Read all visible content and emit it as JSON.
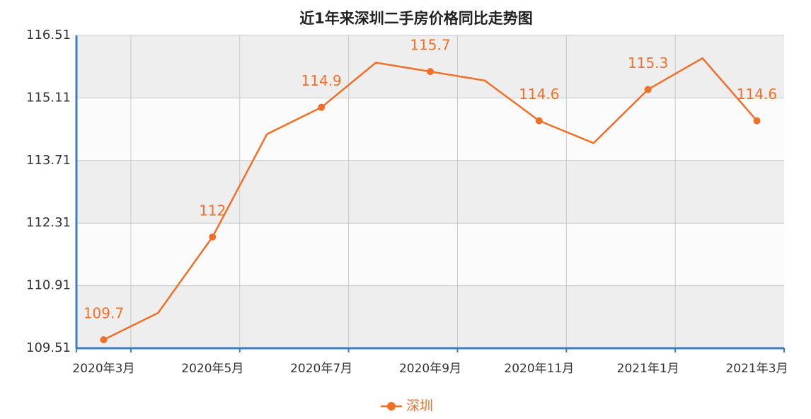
{
  "chart_data": {
    "type": "line",
    "title": "近1年来深圳二手房价格同比走势图",
    "categories": [
      "2020年3月",
      null,
      "2020年5月",
      null,
      "2020年7月",
      null,
      "2020年9月",
      null,
      "2020年11月",
      null,
      "2021年1月",
      null,
      "2021年3月"
    ],
    "series": [
      {
        "name": "深圳",
        "color": "#f07028",
        "values": [
          109.7,
          110.3,
          112,
          114.3,
          114.9,
          115.9,
          115.7,
          115.5,
          114.6,
          114.1,
          115.3,
          116.0,
          114.6
        ],
        "value_labels": [
          "109.7",
          null,
          "112",
          null,
          "114.9",
          null,
          "115.7",
          null,
          "114.6",
          null,
          "115.3",
          null,
          "114.6"
        ]
      }
    ],
    "ylim": [
      109.51,
      116.51
    ],
    "yticks": [
      109.51,
      110.91,
      112.31,
      113.71,
      115.11,
      116.51
    ],
    "grid": true,
    "legend": "bottom"
  }
}
